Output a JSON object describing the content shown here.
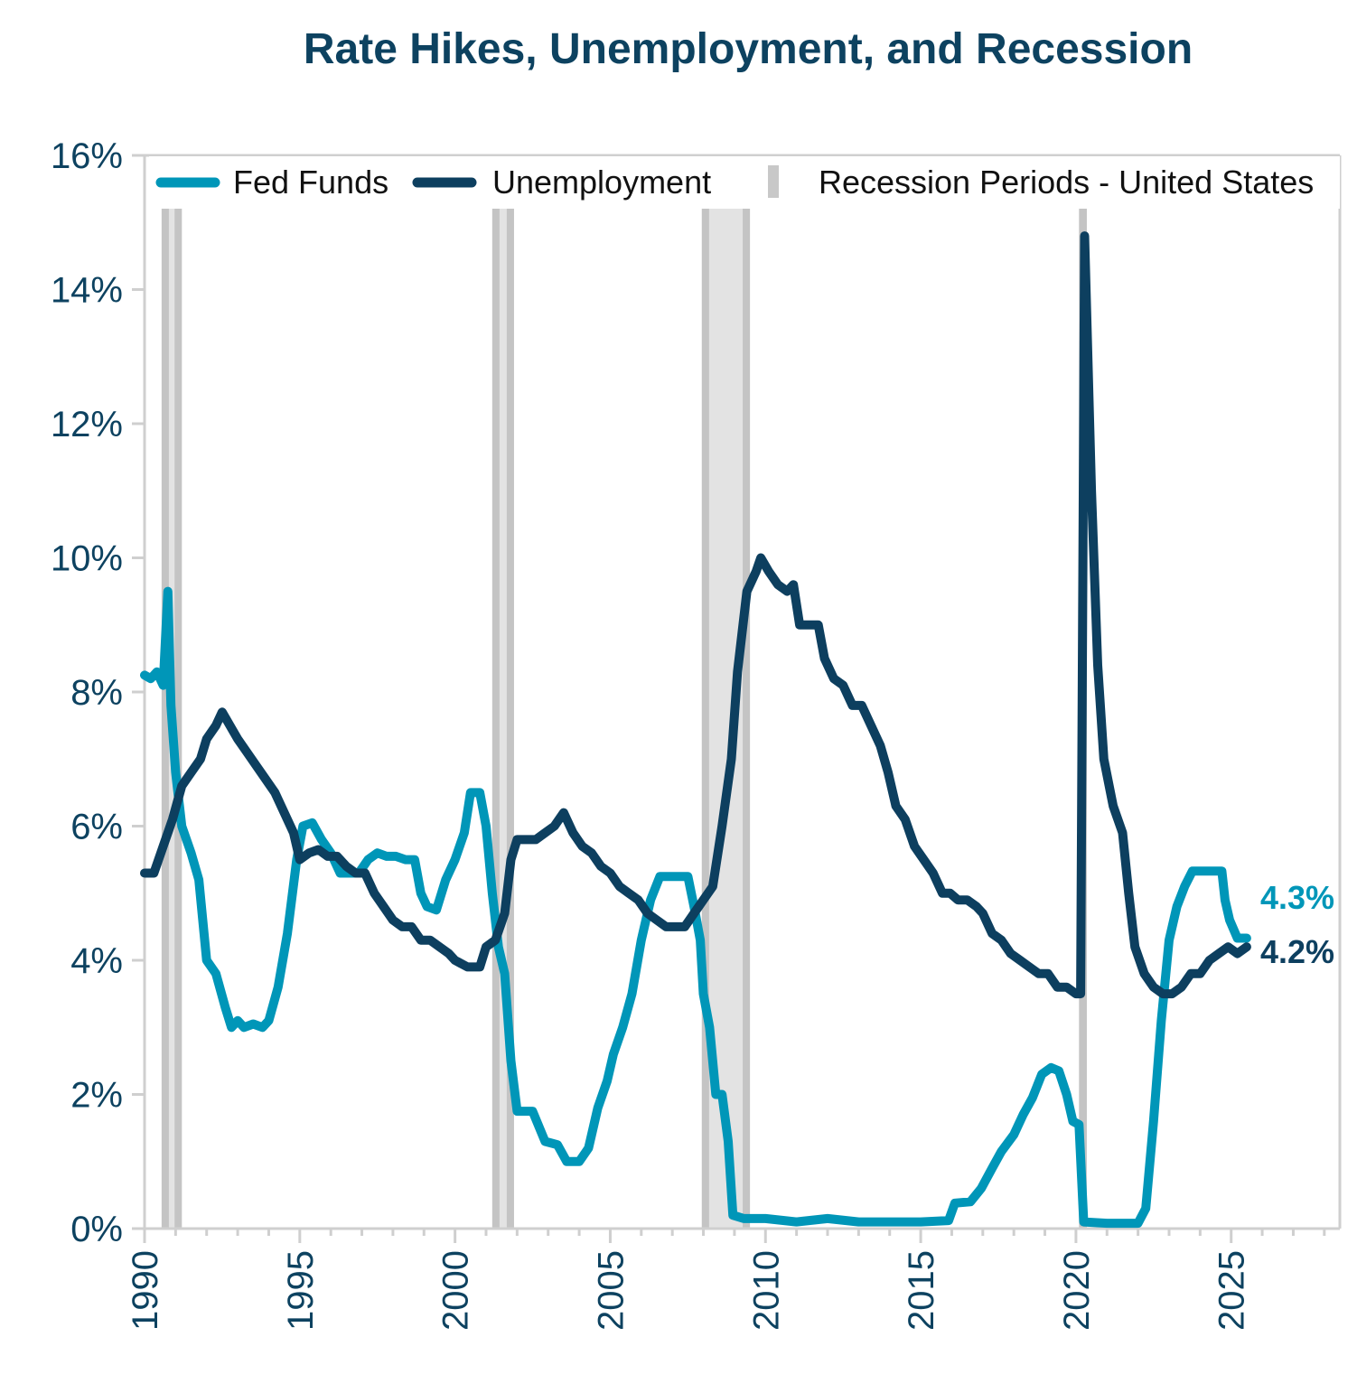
{
  "chart_data": {
    "type": "line",
    "title": "Rate Hikes, Unemployment, and Recession",
    "xlabel": "",
    "ylabel": "",
    "xlim": [
      1990,
      2028.5
    ],
    "ylim": [
      0,
      16
    ],
    "x_ticks": [
      "1990",
      "1995",
      "2000",
      "2005",
      "2010",
      "2015",
      "2020",
      "2025"
    ],
    "y_ticks": [
      "0%",
      "2%",
      "4%",
      "6%",
      "8%",
      "10%",
      "12%",
      "14%",
      "16%"
    ],
    "grid": false,
    "legend": {
      "placement": "top",
      "entries": [
        "Fed Funds",
        "Unemployment",
        "Recession Periods - United States"
      ]
    },
    "colors": {
      "fed_funds": "#0096b8",
      "unemployment": "#0d3f5f",
      "recession": "#d9d9d9",
      "text": "#0d4260"
    },
    "recessions": [
      [
        1990.55,
        1991.2
      ],
      [
        2001.2,
        2001.9
      ],
      [
        2007.95,
        2009.5
      ],
      [
        2020.1,
        2020.35
      ]
    ],
    "end_labels": {
      "fed_funds": "4.3%",
      "unemployment": "4.2%"
    },
    "series": [
      {
        "name": "Fed Funds",
        "points": [
          [
            1990.0,
            8.25
          ],
          [
            1990.2,
            8.2
          ],
          [
            1990.4,
            8.3
          ],
          [
            1990.6,
            8.1
          ],
          [
            1990.75,
            9.5
          ],
          [
            1990.85,
            7.8
          ],
          [
            1991.0,
            6.8
          ],
          [
            1991.2,
            6.0
          ],
          [
            1991.5,
            5.6
          ],
          [
            1991.75,
            5.2
          ],
          [
            1992.0,
            4.0
          ],
          [
            1992.3,
            3.8
          ],
          [
            1992.6,
            3.3
          ],
          [
            1992.8,
            3.0
          ],
          [
            1993.0,
            3.1
          ],
          [
            1993.2,
            3.0
          ],
          [
            1993.5,
            3.05
          ],
          [
            1993.8,
            3.0
          ],
          [
            1994.0,
            3.1
          ],
          [
            1994.3,
            3.6
          ],
          [
            1994.6,
            4.4
          ],
          [
            1994.9,
            5.5
          ],
          [
            1995.1,
            6.0
          ],
          [
            1995.4,
            6.05
          ],
          [
            1995.7,
            5.8
          ],
          [
            1996.0,
            5.6
          ],
          [
            1996.3,
            5.3
          ],
          [
            1996.6,
            5.3
          ],
          [
            1996.9,
            5.3
          ],
          [
            1997.2,
            5.5
          ],
          [
            1997.5,
            5.6
          ],
          [
            1997.8,
            5.55
          ],
          [
            1998.1,
            5.55
          ],
          [
            1998.4,
            5.5
          ],
          [
            1998.7,
            5.5
          ],
          [
            1998.9,
            5.0
          ],
          [
            1999.1,
            4.8
          ],
          [
            1999.4,
            4.75
          ],
          [
            1999.7,
            5.2
          ],
          [
            2000.0,
            5.5
          ],
          [
            2000.3,
            5.9
          ],
          [
            2000.5,
            6.5
          ],
          [
            2000.8,
            6.5
          ],
          [
            2001.0,
            6.0
          ],
          [
            2001.2,
            5.0
          ],
          [
            2001.4,
            4.2
          ],
          [
            2001.6,
            3.8
          ],
          [
            2001.8,
            2.5
          ],
          [
            2002.0,
            1.75
          ],
          [
            2002.5,
            1.75
          ],
          [
            2002.9,
            1.3
          ],
          [
            2003.3,
            1.25
          ],
          [
            2003.6,
            1.0
          ],
          [
            2004.0,
            1.0
          ],
          [
            2004.3,
            1.2
          ],
          [
            2004.6,
            1.8
          ],
          [
            2004.9,
            2.2
          ],
          [
            2005.1,
            2.6
          ],
          [
            2005.4,
            3.0
          ],
          [
            2005.7,
            3.5
          ],
          [
            2006.0,
            4.3
          ],
          [
            2006.3,
            4.9
          ],
          [
            2006.6,
            5.25
          ],
          [
            2006.9,
            5.25
          ],
          [
            2007.2,
            5.25
          ],
          [
            2007.5,
            5.25
          ],
          [
            2007.7,
            4.8
          ],
          [
            2007.9,
            4.3
          ],
          [
            2008.0,
            3.5
          ],
          [
            2008.2,
            3.0
          ],
          [
            2008.4,
            2.0
          ],
          [
            2008.6,
            2.0
          ],
          [
            2008.8,
            1.3
          ],
          [
            2008.95,
            0.2
          ],
          [
            2009.3,
            0.15
          ],
          [
            2010.0,
            0.15
          ],
          [
            2011.0,
            0.1
          ],
          [
            2012.0,
            0.15
          ],
          [
            2013.0,
            0.1
          ],
          [
            2014.0,
            0.1
          ],
          [
            2015.0,
            0.1
          ],
          [
            2015.9,
            0.12
          ],
          [
            2016.1,
            0.38
          ],
          [
            2016.6,
            0.4
          ],
          [
            2016.95,
            0.6
          ],
          [
            2017.3,
            0.9
          ],
          [
            2017.6,
            1.15
          ],
          [
            2018.0,
            1.4
          ],
          [
            2018.3,
            1.7
          ],
          [
            2018.6,
            1.95
          ],
          [
            2018.9,
            2.3
          ],
          [
            2019.2,
            2.4
          ],
          [
            2019.45,
            2.35
          ],
          [
            2019.7,
            2.0
          ],
          [
            2019.9,
            1.6
          ],
          [
            2020.1,
            1.55
          ],
          [
            2020.25,
            0.1
          ],
          [
            2021.0,
            0.08
          ],
          [
            2022.0,
            0.08
          ],
          [
            2022.25,
            0.3
          ],
          [
            2022.5,
            1.6
          ],
          [
            2022.75,
            3.1
          ],
          [
            2023.0,
            4.3
          ],
          [
            2023.25,
            4.8
          ],
          [
            2023.5,
            5.1
          ],
          [
            2023.75,
            5.33
          ],
          [
            2024.5,
            5.33
          ],
          [
            2024.7,
            5.33
          ],
          [
            2024.8,
            4.9
          ],
          [
            2024.95,
            4.6
          ],
          [
            2025.2,
            4.33
          ],
          [
            2025.5,
            4.33
          ]
        ]
      },
      {
        "name": "Unemployment",
        "points": [
          [
            1990.0,
            5.3
          ],
          [
            1990.3,
            5.3
          ],
          [
            1990.6,
            5.7
          ],
          [
            1990.9,
            6.1
          ],
          [
            1991.2,
            6.6
          ],
          [
            1991.5,
            6.8
          ],
          [
            1991.8,
            7.0
          ],
          [
            1992.0,
            7.3
          ],
          [
            1992.3,
            7.5
          ],
          [
            1992.5,
            7.7
          ],
          [
            1992.75,
            7.5
          ],
          [
            1993.0,
            7.3
          ],
          [
            1993.3,
            7.1
          ],
          [
            1993.6,
            6.9
          ],
          [
            1993.9,
            6.7
          ],
          [
            1994.2,
            6.5
          ],
          [
            1994.5,
            6.2
          ],
          [
            1994.8,
            5.9
          ],
          [
            1995.0,
            5.5
          ],
          [
            1995.3,
            5.6
          ],
          [
            1995.6,
            5.65
          ],
          [
            1995.9,
            5.55
          ],
          [
            1996.2,
            5.55
          ],
          [
            1996.5,
            5.4
          ],
          [
            1996.8,
            5.3
          ],
          [
            1997.1,
            5.3
          ],
          [
            1997.4,
            5.0
          ],
          [
            1997.7,
            4.8
          ],
          [
            1998.0,
            4.6
          ],
          [
            1998.3,
            4.5
          ],
          [
            1998.6,
            4.5
          ],
          [
            1998.9,
            4.3
          ],
          [
            1999.2,
            4.3
          ],
          [
            1999.5,
            4.2
          ],
          [
            1999.8,
            4.1
          ],
          [
            2000.0,
            4.0
          ],
          [
            2000.4,
            3.9
          ],
          [
            2000.8,
            3.9
          ],
          [
            2001.0,
            4.2
          ],
          [
            2001.3,
            4.3
          ],
          [
            2001.6,
            4.7
          ],
          [
            2001.8,
            5.5
          ],
          [
            2002.0,
            5.8
          ],
          [
            2002.3,
            5.8
          ],
          [
            2002.6,
            5.8
          ],
          [
            2002.9,
            5.9
          ],
          [
            2003.2,
            6.0
          ],
          [
            2003.5,
            6.2
          ],
          [
            2003.8,
            5.9
          ],
          [
            2004.1,
            5.7
          ],
          [
            2004.4,
            5.6
          ],
          [
            2004.7,
            5.4
          ],
          [
            2005.0,
            5.3
          ],
          [
            2005.3,
            5.1
          ],
          [
            2005.6,
            5.0
          ],
          [
            2005.9,
            4.9
          ],
          [
            2006.2,
            4.7
          ],
          [
            2006.5,
            4.6
          ],
          [
            2006.8,
            4.5
          ],
          [
            2007.1,
            4.5
          ],
          [
            2007.4,
            4.5
          ],
          [
            2007.7,
            4.7
          ],
          [
            2008.0,
            4.9
          ],
          [
            2008.3,
            5.1
          ],
          [
            2008.6,
            6.0
          ],
          [
            2008.9,
            7.0
          ],
          [
            2009.1,
            8.3
          ],
          [
            2009.4,
            9.5
          ],
          [
            2009.7,
            9.8
          ],
          [
            2009.85,
            10.0
          ],
          [
            2010.1,
            9.8
          ],
          [
            2010.4,
            9.6
          ],
          [
            2010.7,
            9.5
          ],
          [
            2010.9,
            9.6
          ],
          [
            2011.1,
            9.0
          ],
          [
            2011.4,
            9.0
          ],
          [
            2011.7,
            9.0
          ],
          [
            2011.9,
            8.5
          ],
          [
            2012.2,
            8.2
          ],
          [
            2012.5,
            8.1
          ],
          [
            2012.8,
            7.8
          ],
          [
            2013.1,
            7.8
          ],
          [
            2013.4,
            7.5
          ],
          [
            2013.7,
            7.2
          ],
          [
            2013.95,
            6.8
          ],
          [
            2014.2,
            6.3
          ],
          [
            2014.5,
            6.1
          ],
          [
            2014.8,
            5.7
          ],
          [
            2015.1,
            5.5
          ],
          [
            2015.4,
            5.3
          ],
          [
            2015.7,
            5.0
          ],
          [
            2015.95,
            5.0
          ],
          [
            2016.2,
            4.9
          ],
          [
            2016.5,
            4.9
          ],
          [
            2016.8,
            4.8
          ],
          [
            2017.0,
            4.7
          ],
          [
            2017.3,
            4.4
          ],
          [
            2017.6,
            4.3
          ],
          [
            2017.9,
            4.1
          ],
          [
            2018.2,
            4.0
          ],
          [
            2018.5,
            3.9
          ],
          [
            2018.8,
            3.8
          ],
          [
            2019.1,
            3.8
          ],
          [
            2019.4,
            3.6
          ],
          [
            2019.7,
            3.6
          ],
          [
            2020.0,
            3.5
          ],
          [
            2020.15,
            3.5
          ],
          [
            2020.28,
            14.8
          ],
          [
            2020.5,
            11.0
          ],
          [
            2020.7,
            8.4
          ],
          [
            2020.9,
            7.0
          ],
          [
            2021.2,
            6.3
          ],
          [
            2021.5,
            5.9
          ],
          [
            2021.7,
            5.0
          ],
          [
            2021.9,
            4.2
          ],
          [
            2022.2,
            3.8
          ],
          [
            2022.5,
            3.6
          ],
          [
            2022.8,
            3.5
          ],
          [
            2023.1,
            3.5
          ],
          [
            2023.4,
            3.6
          ],
          [
            2023.7,
            3.8
          ],
          [
            2024.0,
            3.8
          ],
          [
            2024.3,
            4.0
          ],
          [
            2024.6,
            4.1
          ],
          [
            2024.9,
            4.2
          ],
          [
            2025.2,
            4.1
          ],
          [
            2025.5,
            4.2
          ]
        ]
      }
    ]
  }
}
